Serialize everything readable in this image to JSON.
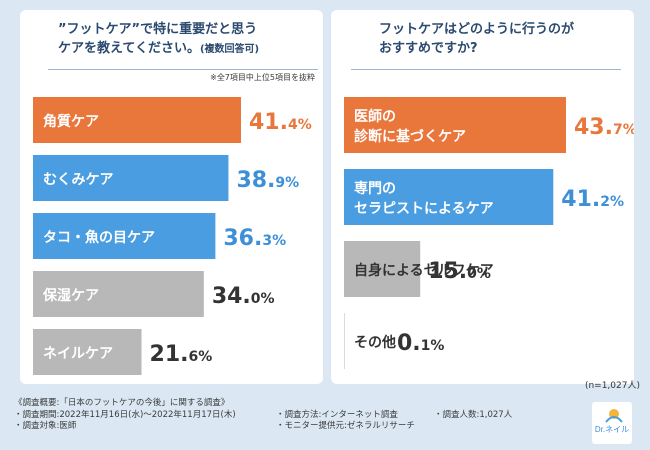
{
  "left": {
    "title_line1": "”フットケア”で特に重要だと思う",
    "title_line2": "ケアを教えてください。",
    "title_suffix": "(複数回答可)",
    "note": "※全7項目中上位5項目を抜粋"
  },
  "right": {
    "title_line1": "フットケアはどのように行うのが",
    "title_line2": "おすすめですか?"
  },
  "n_label": "(n=1,027人)",
  "footer": {
    "overview": "《調査概要:「日本のフットケアの今後」に関する調査》",
    "period": "・調査期間:2022年11月16日(水)〜2022年11月17日(木)",
    "method": "・調査方法:インターネット調査",
    "count": "・調査人数:1,027人",
    "target": "・調査対象:医師",
    "provider": "・モニター提供元:ゼネラルリサーチ"
  },
  "logo_text": "Dr.ネイル",
  "colors": {
    "orange": "#e9773c",
    "blue": "#4a9de0",
    "gray": "#b8b8b8",
    "text_orange": "#e9773c",
    "text_blue": "#3d8fd8",
    "text_gray": "#333333"
  },
  "chart_data": [
    {
      "type": "bar",
      "orientation": "horizontal",
      "title": "”フットケア”で特に重要だと思うケアを教えてください。(複数回答可)",
      "categories": [
        "角質ケア",
        "むくみケア",
        "タコ・魚の目ケア",
        "保湿ケア",
        "ネイルケア"
      ],
      "values": [
        41.4,
        38.9,
        36.3,
        34.0,
        21.6
      ],
      "value_labels": [
        {
          "int": "41.",
          "dec": "4%"
        },
        {
          "int": "38.",
          "dec": "9%"
        },
        {
          "int": "36.",
          "dec": "3%"
        },
        {
          "int": "34.",
          "dec": "0%"
        },
        {
          "int": "21.",
          "dec": "6%"
        }
      ],
      "color_keys": [
        "orange",
        "blue",
        "blue",
        "gray",
        "gray"
      ],
      "unit": "%",
      "xlim": [
        0,
        41.4
      ]
    },
    {
      "type": "bar",
      "orientation": "horizontal",
      "title": "フットケアはどのように行うのがおすすめですか?",
      "categories": [
        [
          "医師の",
          "診断に基づくケア"
        ],
        [
          "専門の",
          "セラピストによるケア"
        ],
        [
          "自身によるセルフケア"
        ],
        [
          "その他"
        ]
      ],
      "values": [
        43.7,
        41.2,
        15.0,
        0.1
      ],
      "value_labels": [
        {
          "int": "43.",
          "dec": "7%"
        },
        {
          "int": "41.",
          "dec": "2%"
        },
        {
          "int": "15.",
          "dec": "0%"
        },
        {
          "int": "0.",
          "dec": "1%"
        }
      ],
      "color_keys": [
        "orange",
        "blue",
        "gray",
        "gray"
      ],
      "unit": "%",
      "xlim": [
        0,
        43.7
      ]
    }
  ]
}
